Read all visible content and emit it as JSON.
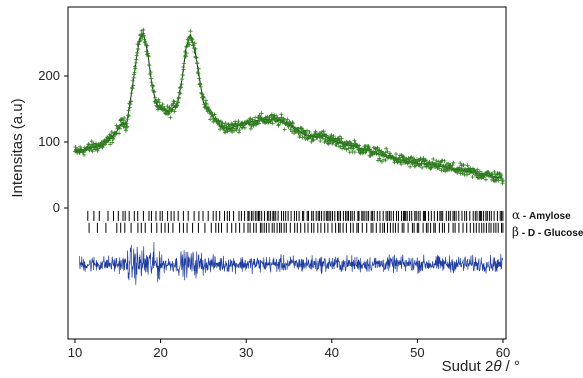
{
  "chart_data": {
    "type": "scatter",
    "title": "",
    "xlabel": "Sudut 2θ / °",
    "xlabel_main": "Sudut 2",
    "xlabel_theta": "θ",
    "xlabel_unit": " / °",
    "ylabel": "Intensitas (a.u)",
    "xlim": [
      10,
      60
    ],
    "ylim": [
      -120,
      300
    ],
    "x_ticks": [
      10,
      20,
      30,
      40,
      50,
      60
    ],
    "x_tick_labels": [
      "10",
      "20",
      "30",
      "40",
      "50",
      "60"
    ],
    "y_ticks": [
      0,
      100,
      200
    ],
    "y_tick_labels": [
      "0",
      "100",
      "200"
    ],
    "grid": false,
    "series": [
      {
        "role": "observed",
        "marker": "plus",
        "color": "#2e7d1e",
        "x": [
          10,
          11,
          12,
          13,
          14,
          15,
          15.5,
          16,
          16.5,
          17,
          17.5,
          18,
          18.5,
          19,
          19.5,
          20,
          21,
          22,
          22.5,
          23,
          23.5,
          24,
          24.5,
          25,
          26,
          27,
          28,
          29,
          30,
          31,
          32,
          33,
          34,
          35,
          36,
          37,
          38,
          39,
          40,
          42,
          44,
          46,
          48,
          50,
          52,
          54,
          56,
          58,
          60
        ],
        "y": [
          85,
          88,
          92,
          95,
          103,
          118,
          130,
          125,
          165,
          210,
          255,
          265,
          235,
          185,
          158,
          150,
          145,
          160,
          195,
          245,
          262,
          240,
          200,
          160,
          140,
          125,
          120,
          125,
          128,
          132,
          134,
          134,
          132,
          128,
          118,
          110,
          108,
          110,
          102,
          95,
          88,
          80,
          73,
          68,
          65,
          60,
          55,
          50,
          45
        ]
      },
      {
        "role": "calculated",
        "marker": "line",
        "color": "#1a1a1a",
        "x": [
          10,
          11,
          12,
          13,
          14,
          15,
          15.5,
          16,
          16.5,
          17,
          17.5,
          18,
          18.5,
          19,
          19.5,
          20,
          21,
          22,
          22.5,
          23,
          23.5,
          24,
          24.5,
          25,
          26,
          27,
          28,
          29,
          30,
          31,
          32,
          33,
          34,
          35,
          36,
          37,
          38,
          39,
          40,
          42,
          44,
          46,
          48,
          50,
          52,
          54,
          56,
          58,
          60
        ],
        "y": [
          85,
          88,
          92,
          95,
          103,
          118,
          130,
          125,
          165,
          210,
          255,
          265,
          235,
          185,
          158,
          150,
          145,
          160,
          195,
          245,
          262,
          240,
          200,
          160,
          140,
          125,
          120,
          125,
          128,
          132,
          134,
          134,
          132,
          128,
          118,
          110,
          108,
          110,
          102,
          95,
          88,
          80,
          73,
          68,
          65,
          60,
          55,
          50,
          45
        ]
      },
      {
        "role": "difference",
        "marker": "line",
        "color": "#1f3d9e",
        "offset": -85,
        "amplitude": 10
      }
    ],
    "phases": [
      {
        "label_symbol": "α",
        "label_text": " - Amylose",
        "y_offset": -12,
        "color": "#000000"
      },
      {
        "label_symbol": "β",
        "label_text": " - D - Glucose",
        "y_offset": -30,
        "color": "#000000"
      }
    ]
  }
}
